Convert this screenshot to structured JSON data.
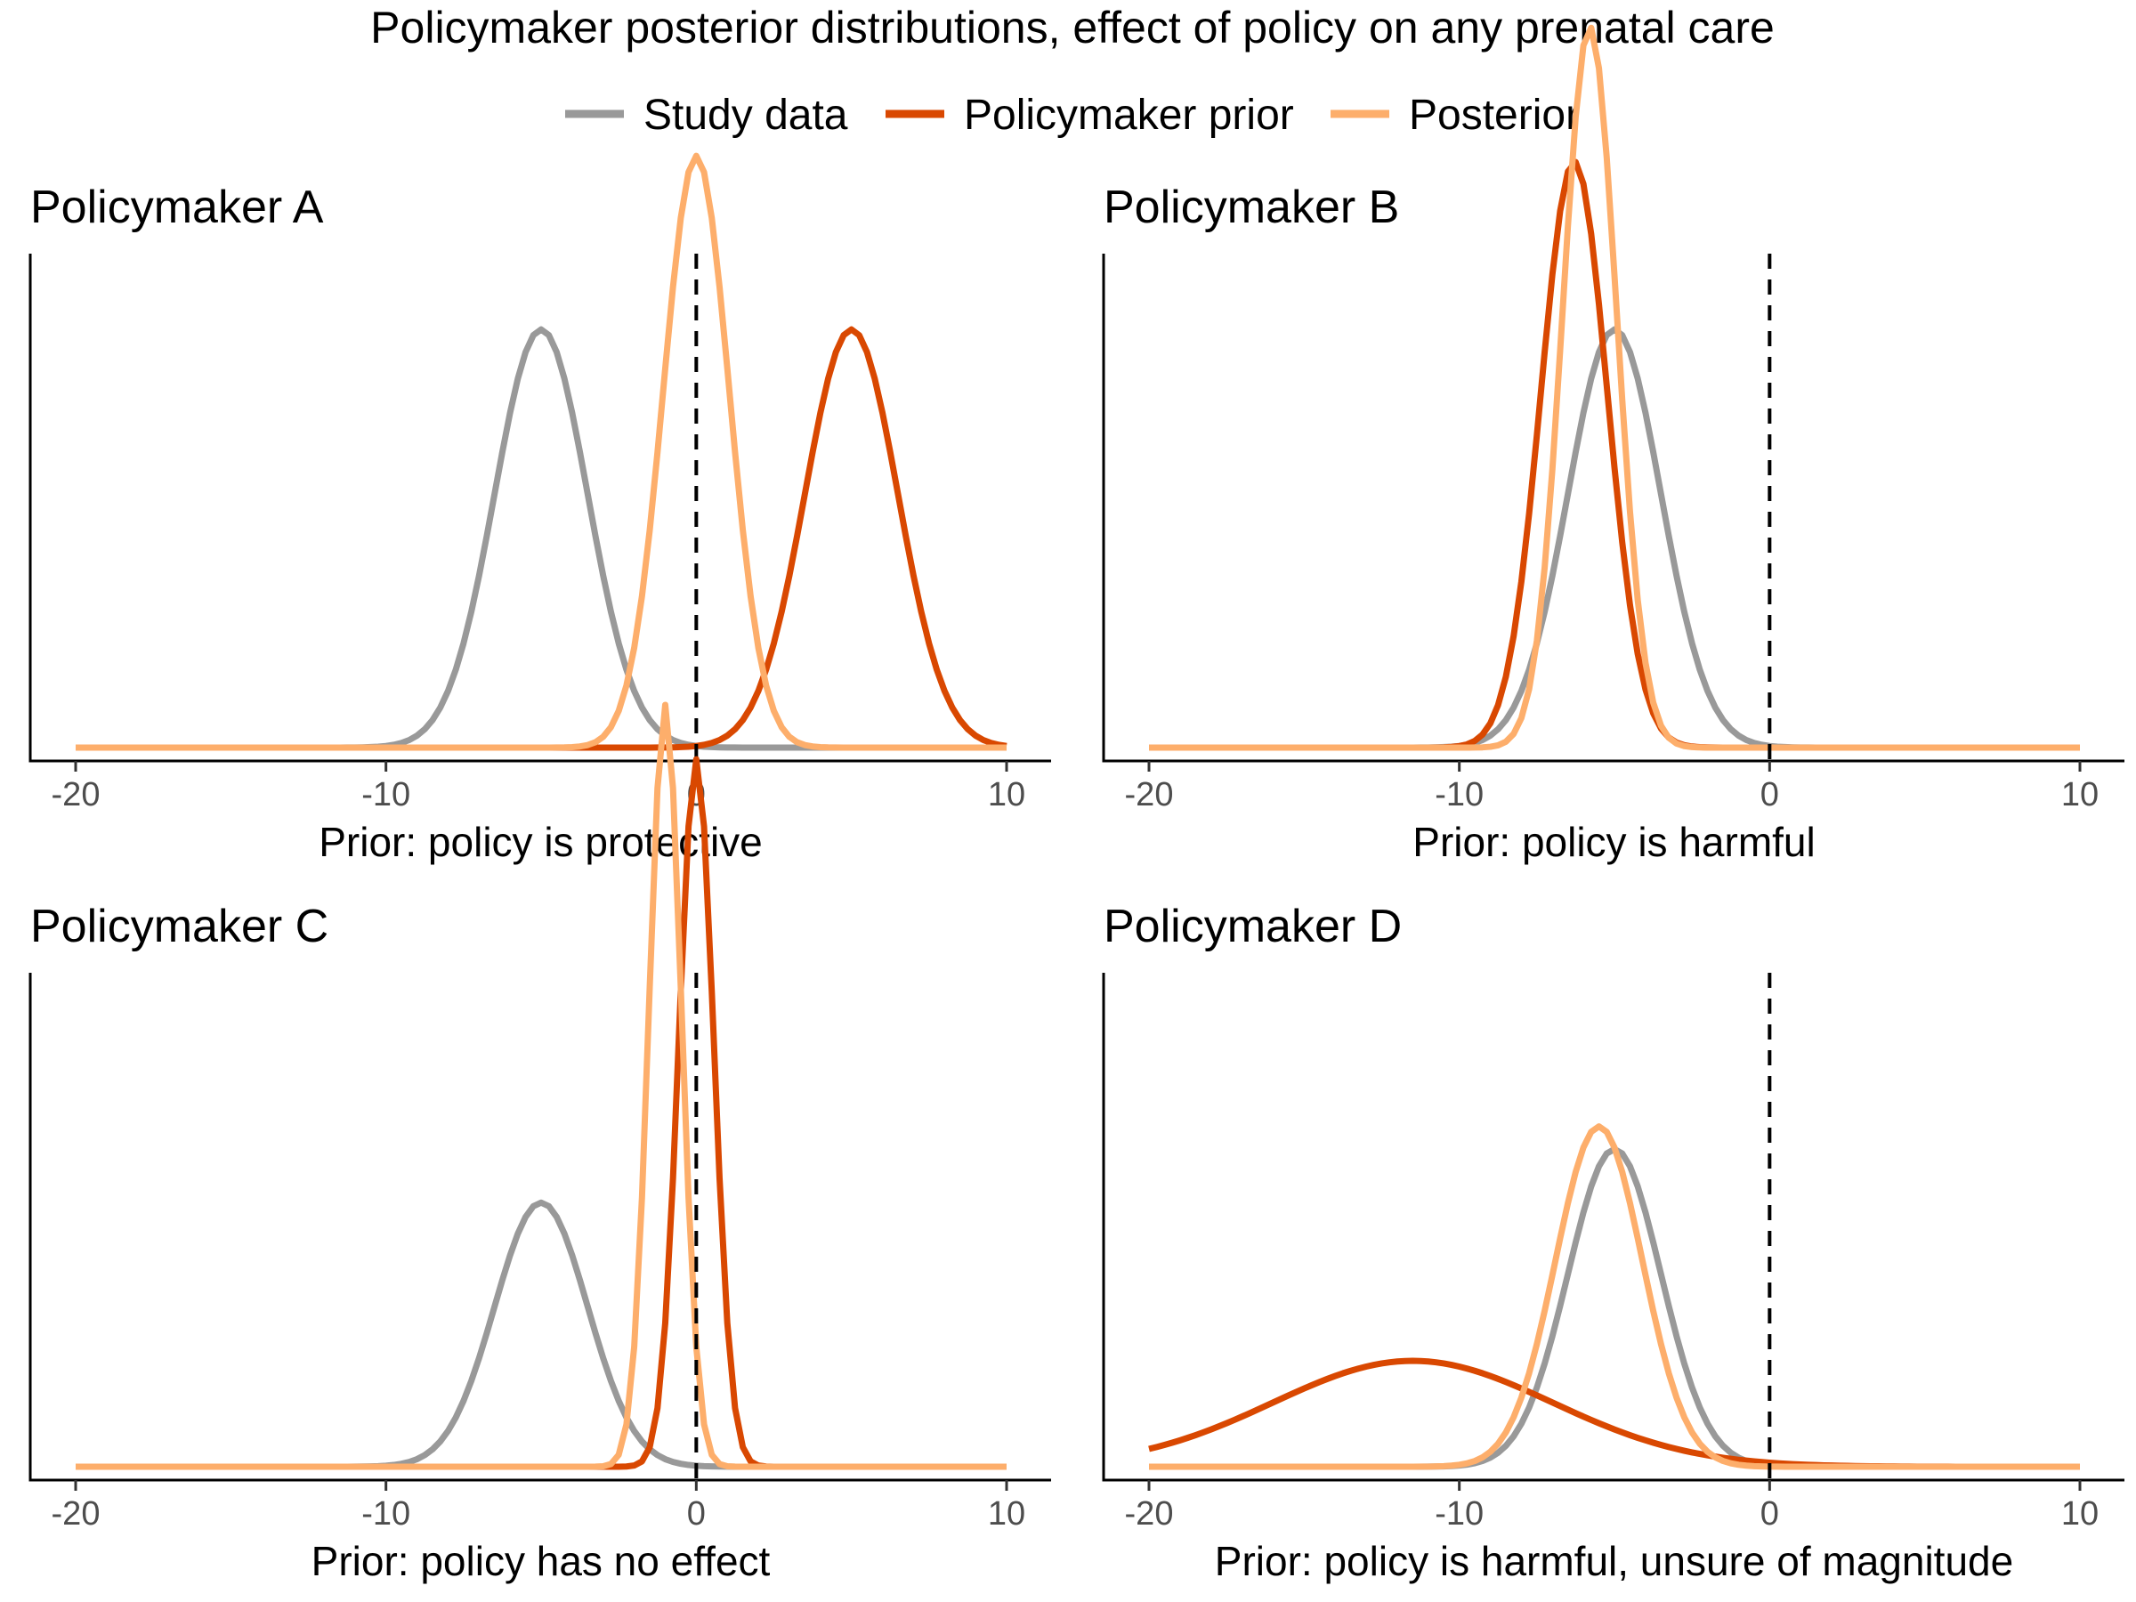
{
  "title": "Policymaker posterior distributions, effect of policy on any prenatal care",
  "legend": [
    {
      "label": "Study data",
      "color": "#999999"
    },
    {
      "label": "Policymaker prior",
      "color": "#d94801"
    },
    {
      "label": "Posterior",
      "color": "#fdae6b"
    }
  ],
  "chart_data": [
    {
      "type": "line",
      "title": "Policymaker A",
      "xlabel": "Prior: policy is protective",
      "ylabel": "",
      "xlim": [
        -20,
        10
      ],
      "xticks": [
        -20,
        -10,
        0,
        10
      ],
      "vline": 0,
      "ylim": [
        0,
        0.3
      ],
      "series": [
        {
          "name": "Study data",
          "color": "#999999",
          "mean": -5,
          "sd": 1.5
        },
        {
          "name": "Policymaker prior",
          "color": "#d94801",
          "mean": 5,
          "sd": 1.5
        },
        {
          "name": "Posterior",
          "color": "#fdae6b",
          "mean": 0,
          "sd": 1.06
        }
      ]
    },
    {
      "type": "line",
      "title": "Policymaker B",
      "xlabel": "Prior: policy is harmful",
      "ylabel": "",
      "xlim": [
        -20,
        10
      ],
      "xticks": [
        -20,
        -10,
        0,
        10
      ],
      "vline": 0,
      "ylim": [
        0,
        0.3
      ],
      "series": [
        {
          "name": "Study data",
          "color": "#999999",
          "mean": -5,
          "sd": 1.5
        },
        {
          "name": "Policymaker prior",
          "color": "#d94801",
          "mean": -6.3,
          "sd": 1.07
        },
        {
          "name": "Posterior",
          "color": "#fdae6b",
          "mean": -5.8,
          "sd": 0.87
        }
      ]
    },
    {
      "type": "line",
      "title": "Policymaker C",
      "xlabel": "Prior: policy has no effect",
      "ylabel": "",
      "xlim": [
        -20,
        10
      ],
      "xticks": [
        -20,
        -10,
        0,
        10
      ],
      "vline": 0,
      "ylim": [
        0,
        0.475
      ],
      "series": [
        {
          "name": "Study data",
          "color": "#999999",
          "mean": -5,
          "sd": 1.5
        },
        {
          "name": "Policymaker prior",
          "color": "#d94801",
          "mean": 0,
          "sd": 0.56
        },
        {
          "name": "Posterior",
          "color": "#fdae6b",
          "mean": -1,
          "sd": 0.52
        }
      ]
    },
    {
      "type": "line",
      "title": "Policymaker D",
      "xlabel": "Prior: policy is harmful, unsure of magnitude",
      "ylabel": "",
      "xlim": [
        -20,
        10
      ],
      "xticks": [
        -20,
        -10,
        0,
        10
      ],
      "vline": 0,
      "ylim": [
        0,
        0.395
      ],
      "series": [
        {
          "name": "Study data",
          "color": "#999999",
          "mean": -5,
          "sd": 1.5
        },
        {
          "name": "Policymaker prior",
          "color": "#d94801",
          "mean": -11.5,
          "sd": 4.5
        },
        {
          "name": "Posterior",
          "color": "#fdae6b",
          "mean": -5.5,
          "sd": 1.4
        }
      ]
    }
  ]
}
